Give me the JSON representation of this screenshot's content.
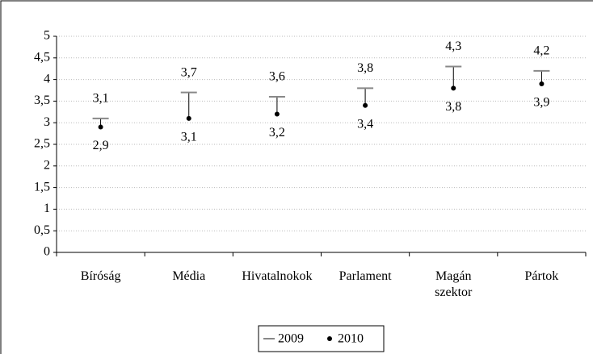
{
  "chart_data": {
    "type": "dot-range",
    "categories": [
      "Bíróság",
      "Média",
      "Hivatalnokok",
      "Parlament",
      "Magán szektor",
      "Pártok"
    ],
    "series": [
      {
        "name": "2009",
        "color": "#888888",
        "values": [
          3.1,
          3.7,
          3.6,
          3.8,
          4.3,
          4.2
        ],
        "value_labels": [
          "3,1",
          "3,7",
          "3,6",
          "3,8",
          "4,3",
          "4,2"
        ]
      },
      {
        "name": "2010",
        "color": "#000000",
        "values": [
          2.9,
          3.1,
          3.2,
          3.4,
          3.8,
          3.9
        ],
        "value_labels": [
          "2,9",
          "3,1",
          "3,2",
          "3,4",
          "3,8",
          "3,9"
        ]
      }
    ],
    "ylim": [
      0,
      5
    ],
    "yticks": [
      0,
      {
        "value": 0.5,
        "label": "0,5"
      },
      1,
      {
        "value": 1.5,
        "label": "1,5"
      },
      2,
      {
        "value": 2.5,
        "label": "2,5"
      },
      3,
      {
        "value": 3.5,
        "label": "3,5"
      },
      4,
      {
        "value": 4.5,
        "label": "4,5"
      },
      5
    ],
    "grid": true,
    "legend": "bottom"
  }
}
